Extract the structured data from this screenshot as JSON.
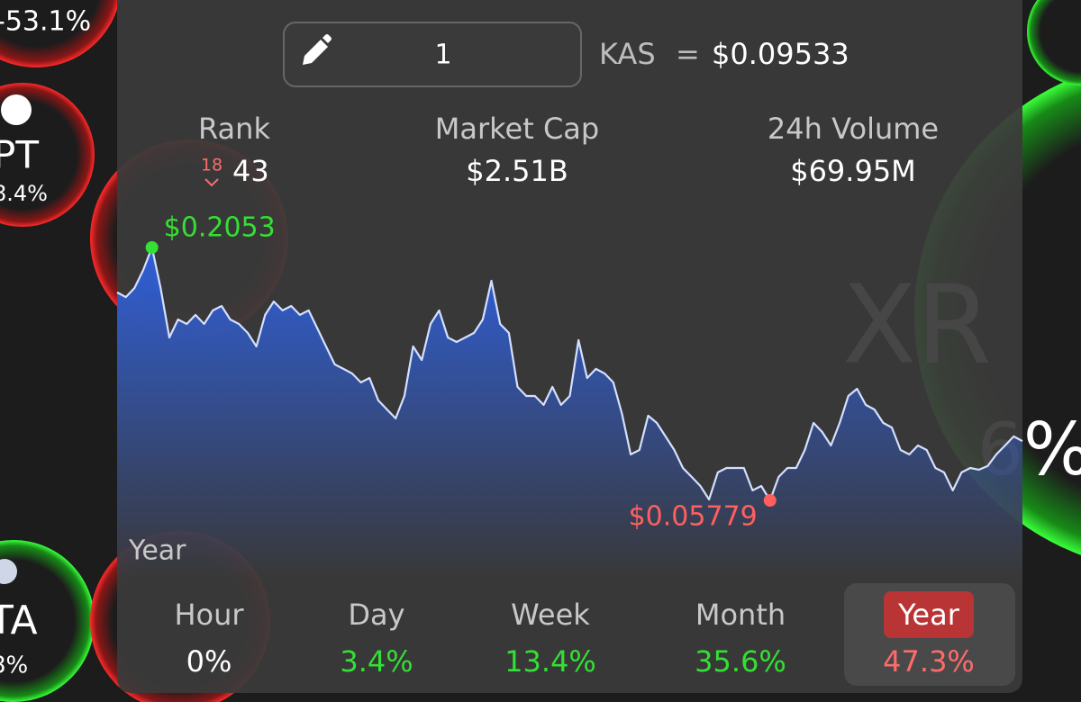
{
  "background": {
    "bubble_1_change": "-53.1%",
    "bubble_2_symbol": "PT",
    "bubble_2_change": "8.4%",
    "bubble_3_symbol": "TA",
    "bubble_3_change": "8%",
    "bubble_4_symbol": "XR",
    "bubble_4_change": "6%"
  },
  "converter": {
    "amount": "1",
    "symbol": "KAS",
    "equals": "=",
    "price": "$0.09533"
  },
  "stats": {
    "rank": {
      "label": "Rank",
      "value": "43",
      "change": "18"
    },
    "market_cap": {
      "label": "Market Cap",
      "value": "$2.51B"
    },
    "volume": {
      "label": "24h Volume",
      "value": "$69.95M"
    }
  },
  "chart_data": {
    "type": "area",
    "period": "Year",
    "color": "#2f5fd8",
    "line_color": "#d4e0ff",
    "high_color": "#33e033",
    "low_color": "#ff5f5f",
    "high_label": "$0.2053",
    "low_label": "$0.05779",
    "values": [
      0.1791,
      0.1764,
      0.1817,
      0.1922,
      0.2053,
      0.1817,
      0.1528,
      0.1633,
      0.1607,
      0.166,
      0.1607,
      0.1686,
      0.1712,
      0.1633,
      0.1607,
      0.1555,
      0.1476,
      0.166,
      0.1738,
      0.1686,
      0.1712,
      0.166,
      0.1686,
      0.1581,
      0.1476,
      0.1371,
      0.1345,
      0.1318,
      0.1266,
      0.1292,
      0.1161,
      0.1108,
      0.1056,
      0.1187,
      0.1476,
      0.1397,
      0.1607,
      0.1686,
      0.1528,
      0.1502,
      0.1528,
      0.1555,
      0.1633,
      0.1859,
      0.1607,
      0.1555,
      0.124,
      0.1187,
      0.1187,
      0.1135,
      0.124,
      0.1135,
      0.1187,
      0.1513,
      0.1292,
      0.1345,
      0.1318,
      0.1266,
      0.1082,
      0.0846,
      0.0872,
      0.1072,
      0.103,
      0.0951,
      0.0872,
      0.0767,
      0.0715,
      0.0662,
      0.0583,
      0.0741,
      0.0767,
      0.0767,
      0.0767,
      0.0636,
      0.0662,
      0.05779,
      0.0715,
      0.0767,
      0.0767,
      0.0872,
      0.103,
      0.0977,
      0.0898,
      0.103,
      0.1187,
      0.1229,
      0.1135,
      0.1108,
      0.103,
      0.1003,
      0.0872,
      0.0846,
      0.0898,
      0.0872,
      0.0767,
      0.0741,
      0.0636,
      0.0741,
      0.0767,
      0.0757,
      0.0778,
      0.0846,
      0.0898,
      0.0951,
      0.0924
    ]
  },
  "periods": [
    {
      "name": "Hour",
      "change": "0%",
      "color": "#ffffff"
    },
    {
      "name": "Day",
      "change": "3.4%",
      "color": "#33e033"
    },
    {
      "name": "Week",
      "change": "13.4%",
      "color": "#33e033"
    },
    {
      "name": "Month",
      "change": "35.6%",
      "color": "#33e033"
    },
    {
      "name": "Year",
      "change": "47.3%",
      "color": "#ff6b6b",
      "selected": true
    }
  ]
}
